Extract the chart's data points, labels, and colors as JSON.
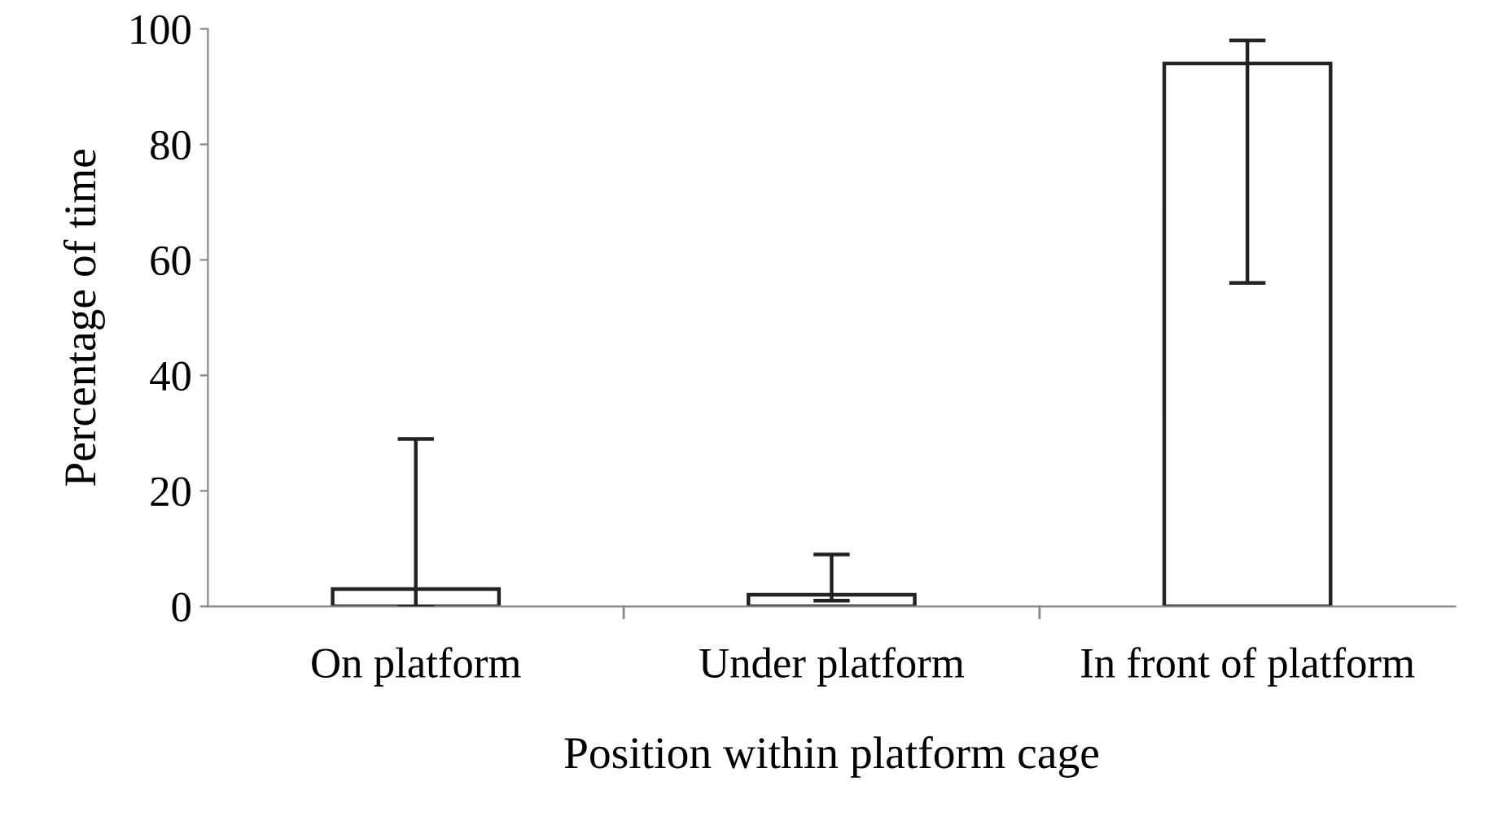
{
  "chart_data": {
    "type": "bar",
    "xlabel": "Position within platform cage",
    "ylabel": "Percentage of time",
    "categories": [
      "On platform",
      "Under platform",
      "In front of platform"
    ],
    "values": [
      3,
      2,
      94
    ],
    "errors": [
      [
        0,
        29
      ],
      [
        1,
        9
      ],
      [
        56,
        98
      ]
    ],
    "color": "#ffffff",
    "ylim": [
      0,
      100
    ],
    "yticks": [
      0,
      20,
      40,
      60,
      80,
      100
    ],
    "grid": false,
    "legend": false
  }
}
